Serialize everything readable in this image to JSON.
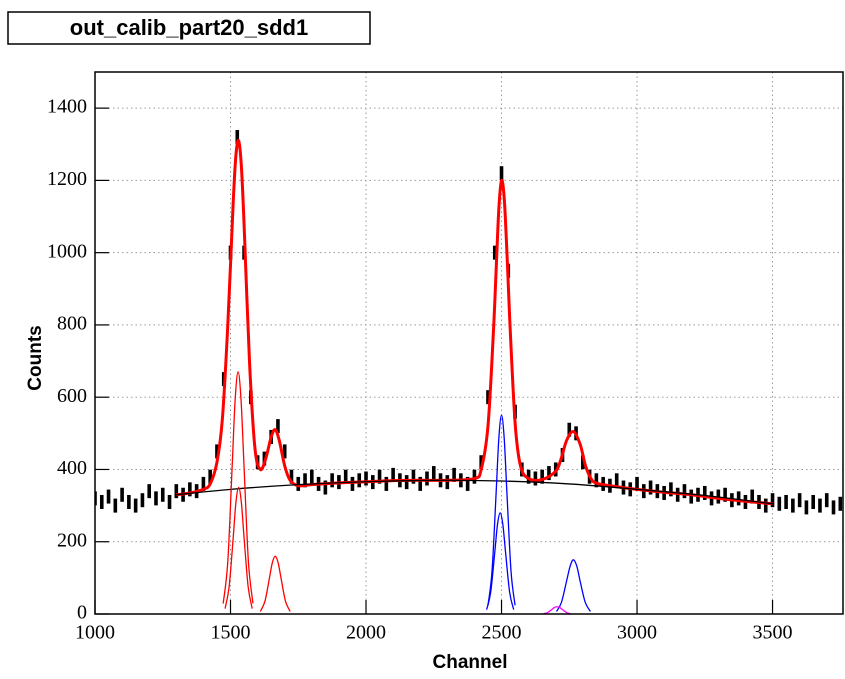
{
  "chart_data": {
    "type": "histogram-fit",
    "title": "out_calib_part20_sdd1",
    "x_label": "Channel",
    "y_label": "Counts",
    "xlim": [
      1000,
      3760
    ],
    "ylim": [
      0,
      1500
    ],
    "xticks": [
      1000,
      1500,
      2000,
      2500,
      3000,
      3500
    ],
    "yticks": [
      0,
      200,
      400,
      600,
      800,
      1000,
      1200,
      1400
    ],
    "grid": true,
    "histogram": {
      "color": "#000000",
      "x": [
        1000,
        1025,
        1050,
        1075,
        1100,
        1125,
        1150,
        1175,
        1200,
        1225,
        1250,
        1275,
        1300,
        1325,
        1350,
        1375,
        1400,
        1425,
        1450,
        1475,
        1500,
        1525,
        1550,
        1575,
        1600,
        1625,
        1650,
        1675,
        1700,
        1725,
        1750,
        1775,
        1800,
        1825,
        1850,
        1875,
        1900,
        1925,
        1950,
        1975,
        2000,
        2025,
        2050,
        2075,
        2100,
        2125,
        2150,
        2175,
        2200,
        2225,
        2250,
        2275,
        2300,
        2325,
        2350,
        2375,
        2400,
        2425,
        2450,
        2475,
        2500,
        2525,
        2550,
        2575,
        2600,
        2625,
        2650,
        2675,
        2700,
        2725,
        2750,
        2775,
        2800,
        2825,
        2850,
        2875,
        2900,
        2925,
        2950,
        2975,
        3000,
        3025,
        3050,
        3075,
        3100,
        3125,
        3150,
        3175,
        3200,
        3225,
        3250,
        3275,
        3300,
        3325,
        3350,
        3375,
        3400,
        3425,
        3450,
        3475,
        3500,
        3525,
        3550,
        3575,
        3600,
        3625,
        3650,
        3675,
        3700,
        3725,
        3750
      ],
      "values": [
        320,
        310,
        325,
        300,
        330,
        310,
        300,
        315,
        340,
        320,
        330,
        310,
        340,
        330,
        345,
        340,
        360,
        380,
        450,
        650,
        1000,
        1320,
        1000,
        600,
        420,
        430,
        490,
        520,
        450,
        380,
        360,
        370,
        380,
        360,
        350,
        370,
        365,
        380,
        360,
        370,
        375,
        365,
        380,
        360,
        385,
        370,
        365,
        380,
        360,
        375,
        390,
        370,
        365,
        385,
        370,
        360,
        380,
        420,
        600,
        1000,
        1220,
        950,
        560,
        400,
        380,
        375,
        380,
        390,
        400,
        440,
        510,
        500,
        420,
        380,
        370,
        360,
        355,
        370,
        350,
        345,
        360,
        340,
        350,
        340,
        335,
        345,
        330,
        340,
        325,
        330,
        335,
        320,
        325,
        330,
        315,
        320,
        310,
        325,
        310,
        300,
        315,
        305,
        310,
        300,
        315,
        295,
        310,
        300,
        315,
        295,
        305
      ]
    },
    "fits": [
      {
        "color": "#ff0000",
        "x": [
          1300,
          1350,
          1400,
          1425,
          1450,
          1470,
          1490,
          1510,
          1520,
          1530,
          1540,
          1550,
          1570,
          1590,
          1610,
          1630,
          1650,
          1665,
          1680,
          1700,
          1720,
          1750,
          1800,
          1900,
          2000,
          2100,
          2200,
          2300,
          2400,
          2425,
          2450,
          2470,
          2480,
          2490,
          2500,
          2510,
          2520,
          2530,
          2550,
          2570,
          2600,
          2650,
          2700,
          2720,
          2740,
          2765,
          2790,
          2810,
          2830,
          2850,
          2900,
          3000,
          3100,
          3200,
          3300,
          3400,
          3500
        ],
        "values": [
          330,
          335,
          345,
          360,
          420,
          540,
          800,
          1140,
          1270,
          1310,
          1240,
          1080,
          700,
          460,
          400,
          430,
          490,
          510,
          480,
          410,
          370,
          355,
          358,
          363,
          366,
          369,
          370,
          370,
          375,
          400,
          520,
          780,
          950,
          1120,
          1200,
          1150,
          1000,
          820,
          530,
          410,
          375,
          372,
          395,
          430,
          480,
          505,
          470,
          410,
          375,
          362,
          355,
          345,
          337,
          330,
          320,
          312,
          305
        ]
      },
      {
        "color": "#000000",
        "x": [
          1300,
          1500,
          1750,
          2000,
          2250,
          2500,
          2750,
          3000,
          3250,
          3500
        ],
        "values": [
          330,
          345,
          358,
          366,
          370,
          368,
          360,
          345,
          328,
          305
        ]
      },
      {
        "color": "#ff0000",
        "x": [
          1473,
          1490,
          1506,
          1517,
          1528,
          1539,
          1550,
          1566,
          1583
        ],
        "values": [
          29,
          145,
          407,
          591,
          670,
          591,
          407,
          145,
          29
        ]
      },
      {
        "color": "#ff0000",
        "x": [
          1480,
          1495,
          1510,
          1520,
          1530,
          1540,
          1550,
          1565,
          1580
        ],
        "values": [
          15,
          76,
          212,
          309,
          350,
          309,
          212,
          76,
          15
        ]
      },
      {
        "color": "#ff0000",
        "x": [
          1610,
          1627,
          1643,
          1654,
          1665,
          1676,
          1687,
          1703,
          1720
        ],
        "values": [
          7,
          35,
          97,
          141,
          160,
          141,
          97,
          35,
          7
        ]
      },
      {
        "color": "#0000ff",
        "x": [
          2450,
          2465,
          2480,
          2490,
          2500,
          2510,
          2520,
          2535,
          2550
        ],
        "values": [
          24,
          119,
          334,
          485,
          550,
          485,
          334,
          119,
          24
        ]
      },
      {
        "color": "#0000ff",
        "x": [
          2445,
          2460,
          2475,
          2485,
          2495,
          2505,
          2515,
          2530,
          2545
        ],
        "values": [
          12,
          60,
          170,
          247,
          280,
          247,
          170,
          60,
          12
        ]
      },
      {
        "color": "#0000ff",
        "x": [
          2703,
          2721,
          2740,
          2753,
          2765,
          2778,
          2790,
          2809,
          2828
        ],
        "values": [
          7,
          32,
          91,
          132,
          150,
          132,
          91,
          32,
          7
        ]
      },
      {
        "color": "#ff00ff",
        "x": [
          2655,
          2670,
          2685,
          2695,
          2705,
          2715,
          2725,
          2740,
          2755
        ],
        "values": [
          1,
          4,
          12,
          18,
          20,
          18,
          12,
          4,
          1
        ]
      }
    ]
  }
}
